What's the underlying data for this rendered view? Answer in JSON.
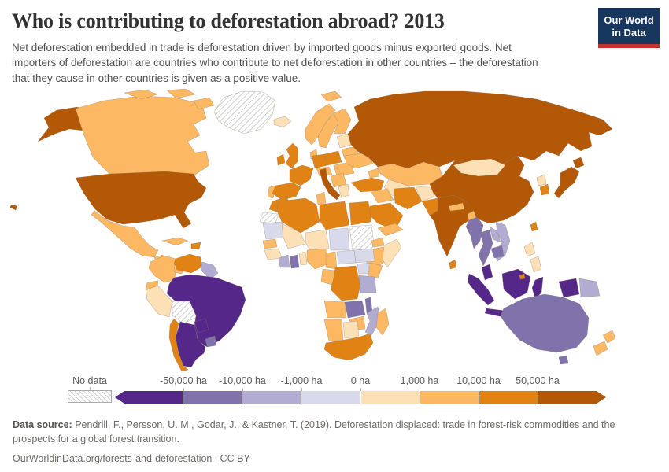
{
  "header": {
    "title": "Who is contributing to deforestation abroad? 2013",
    "subtitle": "Net deforestation embedded in trade is deforestation driven by imported goods minus exported goods. Net importers of deforestation are countries who contribute to net deforestation in other countries – the deforestation that they cause in other countries is given as a positive value.",
    "logo": {
      "line1": "Our World",
      "line2": "in Data",
      "bg_color": "#18375f",
      "accent_color": "#c4302b"
    }
  },
  "legend": {
    "no_data_label": "No data",
    "tick_labels": [
      "-50,000 ha",
      "-10,000 ha",
      "-1,000 ha",
      "0 ha",
      "1,000 ha",
      "10,000 ha",
      "50,000 ha"
    ],
    "bin_order": [
      "b1",
      "b2",
      "b3",
      "b4",
      "b5",
      "b6",
      "b7",
      "b8"
    ],
    "bin_colors": {
      "b1": "#542788",
      "b2": "#8073ac",
      "b3": "#b2abd2",
      "b4": "#d8daeb",
      "b5": "#fee0b6",
      "b6": "#fdb863",
      "b7": "#e08214",
      "b8": "#b35806"
    }
  },
  "footer": {
    "source_label": "Data source:",
    "source_text": " Pendrill, F., Persson, U. M., Godar, J., & Kastner, T. (2019). Deforestation displaced: trade in forest-risk commodities and the prospects for a global forest transition.",
    "link_line": "OurWorldinData.org/forests-and-deforestation | CC BY"
  },
  "chart_data": {
    "type": "heatmap",
    "subtype": "choropleth-world-map",
    "title": "Who is contributing to deforestation abroad?",
    "year": "2013",
    "unit": "ha",
    "value_description": "Net deforestation embedded in trade (hectares); positive = net importer of deforestation",
    "legend_ticks": [
      "-50,000 ha",
      "-10,000 ha",
      "-1,000 ha",
      "0 ha",
      "1,000 ha",
      "10,000 ha",
      "50,000 ha"
    ],
    "bins": [
      {
        "id": "b1",
        "range": "below -50,000 ha",
        "color": "#542788"
      },
      {
        "id": "b2",
        "range": "-50,000 to -10,000 ha",
        "color": "#8073ac"
      },
      {
        "id": "b3",
        "range": "-10,000 to -1,000 ha",
        "color": "#b2abd2"
      },
      {
        "id": "b4",
        "range": "-1,000 to 0 ha",
        "color": "#d8daeb"
      },
      {
        "id": "b5",
        "range": "0 to 1,000 ha",
        "color": "#fee0b6"
      },
      {
        "id": "b6",
        "range": "1,000 to 10,000 ha",
        "color": "#fdb863"
      },
      {
        "id": "b7",
        "range": "10,000 to 50,000 ha",
        "color": "#e08214"
      },
      {
        "id": "b8",
        "range": "above 50,000 ha",
        "color": "#b35806"
      },
      {
        "id": "nodata",
        "range": "No data",
        "color": "hatched"
      }
    ],
    "country_bins": {
      "United States": "b8",
      "Canada": "b6",
      "Greenland": "nodata",
      "Mexico": "b6",
      "Guatemala": "b6",
      "Nicaragua": "b2",
      "Panama": "b6",
      "Cuba": "b6",
      "Haiti/Dominican Rep.": "b7",
      "Colombia": "b6",
      "Venezuela": "b7",
      "Guyana/Suriname": "b3",
      "Ecuador": "b6",
      "Peru": "b5",
      "Bolivia": "nodata",
      "Brazil": "b1",
      "Paraguay": "b1",
      "Uruguay": "b2",
      "Argentina": "b1",
      "Chile": "b7",
      "Iceland": "b5",
      "Ireland": "b7",
      "United Kingdom": "b7",
      "Norway": "b6",
      "Sweden": "b6",
      "Finland": "b6",
      "Denmark": "b6",
      "Baltic states": "b5",
      "Belarus": "b6",
      "Poland": "b7",
      "Germany": "b7",
      "France": "b7",
      "Spain": "b7",
      "Portugal": "b6",
      "Italy": "b8",
      "Central Europe": "b6",
      "Romania": "b6",
      "Balkans": "b6",
      "Greece": "b5",
      "Ukraine": "b6",
      "Svalbard": "b6",
      "Russia": "b8",
      "Kazakhstan": "b6",
      "Caucasus": "b6",
      "Central Asia": "b5",
      "Turkey": "b7",
      "Syria/Iraq": "b6",
      "Iran": "b7",
      "Afghanistan": "b5",
      "Pakistan": "b7",
      "Saudi Arabia": "b7",
      "Yemen/Oman": "b6",
      "India": "b8",
      "Nepal": "b6",
      "Bangladesh": "b6",
      "Sri Lanka": "b7",
      "China": "b8",
      "Mongolia": "b5",
      "North Korea": "b5",
      "South Korea": "b7",
      "Japan": "b8",
      "Taiwan": "b7",
      "Myanmar": "b2",
      "Thailand": "b2",
      "Laos": "b3",
      "Vietnam": "b3",
      "Cambodia": "b2",
      "Malaysia": "b1",
      "Indonesia": "b1",
      "Brunei": "b7",
      "Philippines": "b5",
      "Papua New Guinea": "b3",
      "Australia": "b2",
      "New Zealand": "b6",
      "Morocco": "b7",
      "Western Sahara": "nodata",
      "Algeria": "b7",
      "Tunisia": "b6",
      "Libya": "b7",
      "Egypt": "b7",
      "Mauritania": "b4",
      "Mali": "b5",
      "Niger": "b5",
      "Chad": "b4",
      "Sudan": "nodata",
      "Eritrea": "b6",
      "Ethiopia": "b6",
      "Somalia": "b5",
      "Senegal": "b6",
      "Guinea": "b5",
      "Côte d'Ivoire": "b3",
      "Ghana": "b2",
      "Benin/Togo": "b5",
      "Nigeria": "b6",
      "Cameroon": "b6",
      "Central African Republic": "b4",
      "South Sudan": "b4",
      "Uganda": "b4",
      "Kenya": "b6",
      "Congo": "b6",
      "DR Congo": "b7",
      "Tanzania": "b3",
      "Angola": "b6",
      "Zambia": "b2",
      "Malawi": "b2",
      "Mozambique": "b3",
      "Zimbabwe": "b6",
      "Namibia": "b6",
      "Botswana": "b5",
      "South Africa": "b7",
      "Madagascar": "b6"
    }
  }
}
